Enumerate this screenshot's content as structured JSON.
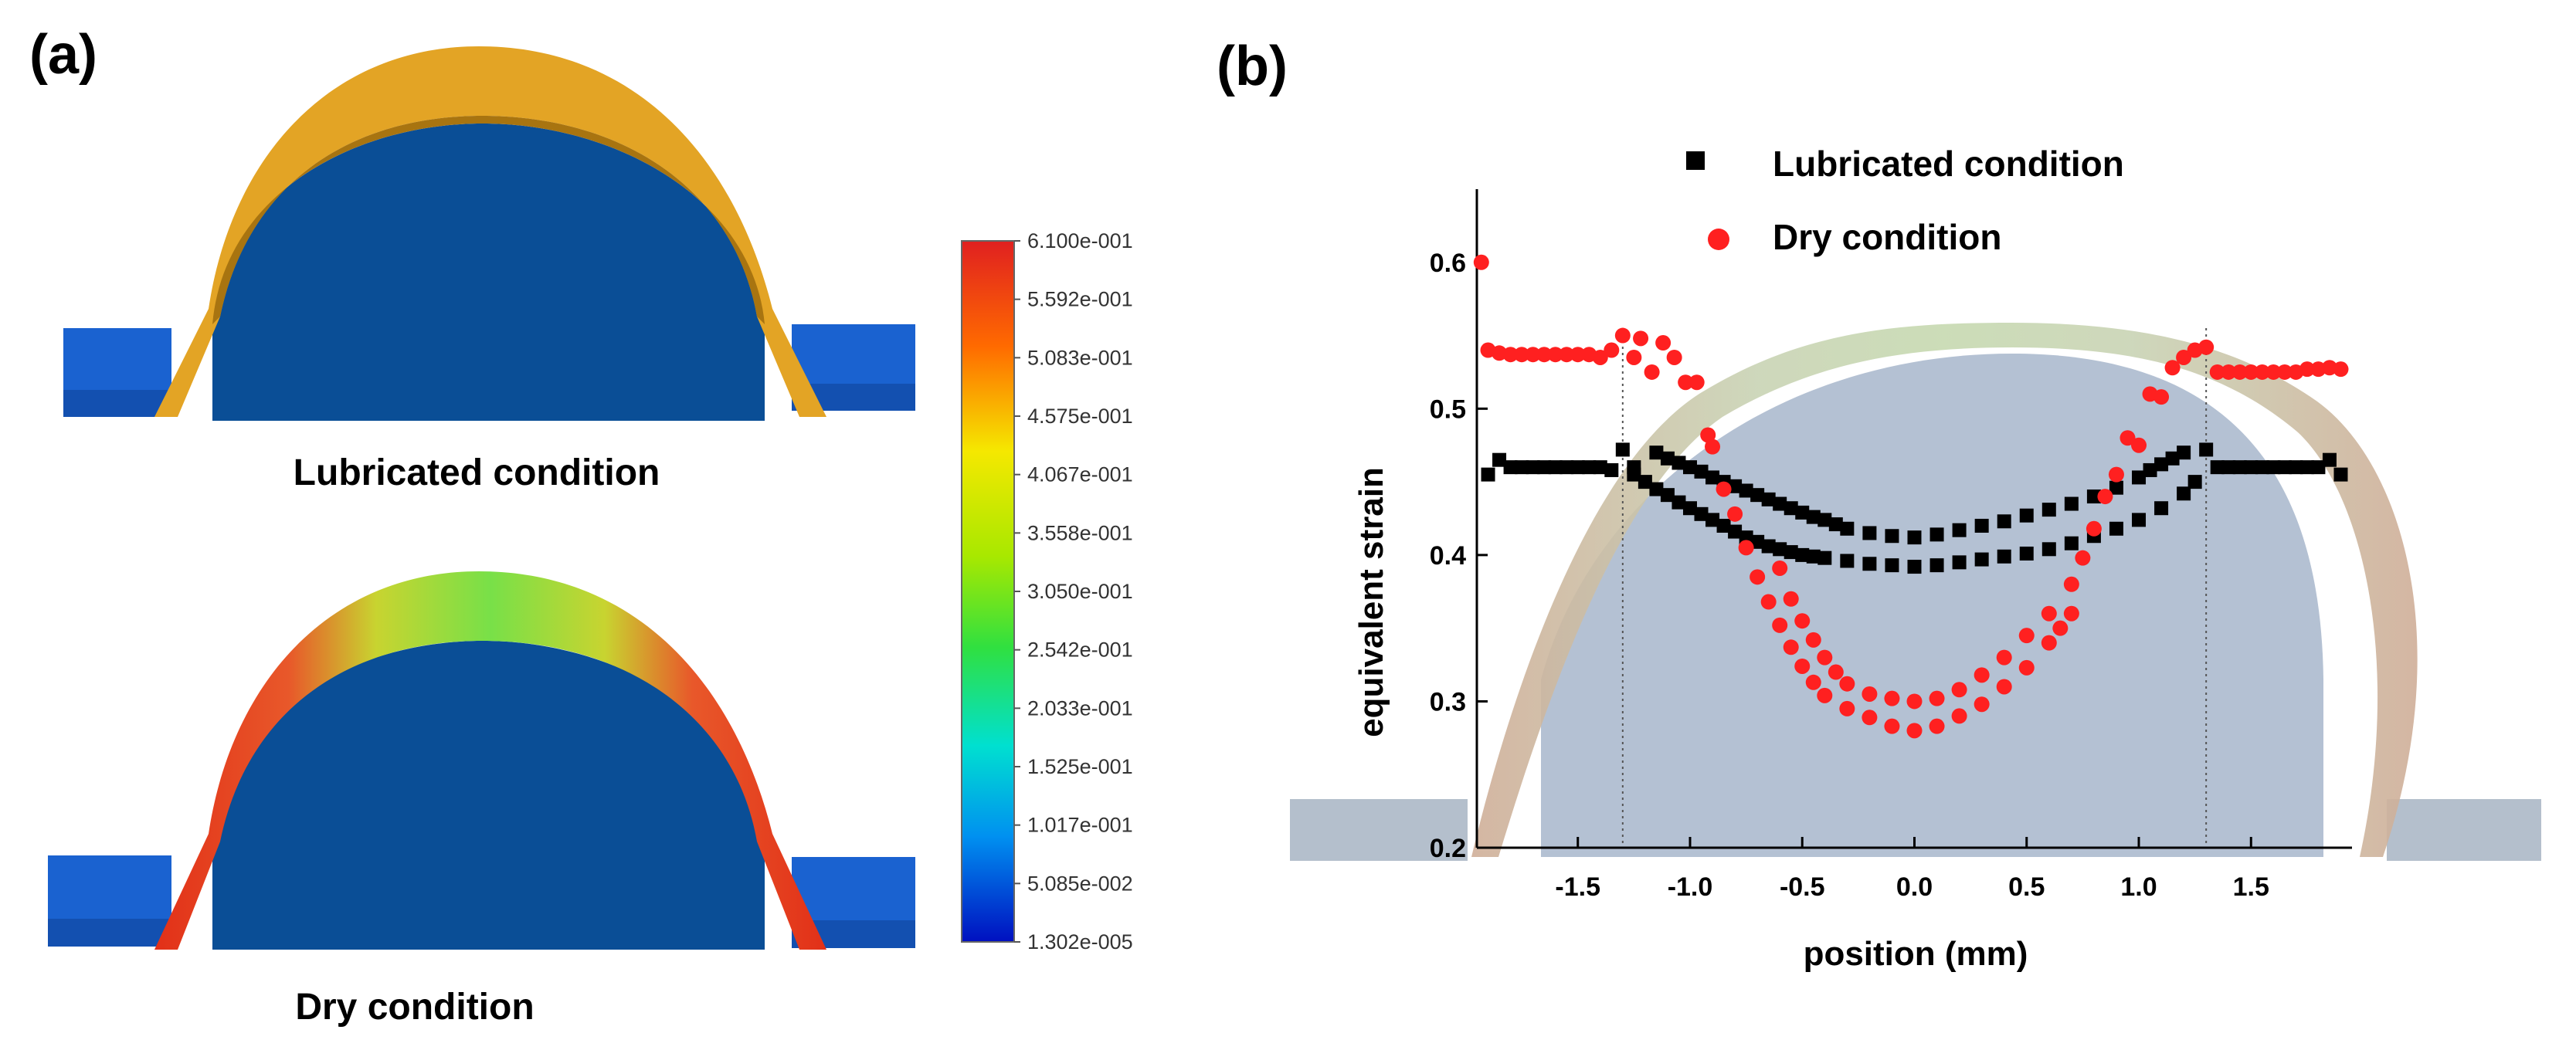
{
  "panels": {
    "a_label": "(a)",
    "b_label": "(b)"
  },
  "sim": {
    "lubricated_caption": "Lubricated condition",
    "dry_caption": "Dry condition",
    "colors": {
      "substrate": "#0a4e96",
      "lubricated_strip": "#e3a425",
      "block": "#1a62d0"
    },
    "colorbar_labels": [
      "6.100e-001",
      "5.592e-001",
      "5.083e-001",
      "4.575e-001",
      "4.067e-001",
      "3.558e-001",
      "3.050e-001",
      "2.542e-001",
      "2.033e-001",
      "1.525e-001",
      "1.017e-001",
      "5.085e-002",
      "1.302e-005"
    ]
  },
  "chart_data": {
    "type": "scatter",
    "xlabel": "position (mm)",
    "ylabel": "equivalent strain",
    "xlim": [
      -1.95,
      1.95
    ],
    "ylim": [
      0.2,
      0.65
    ],
    "xticks": [
      -1.5,
      -1.0,
      -0.5,
      0.0,
      0.5,
      1.0,
      1.5
    ],
    "xtick_labels": [
      "-1.5",
      "-1.0",
      "-0.5",
      "0.0",
      "0.5",
      "1.0",
      "1.5"
    ],
    "yticks": [
      0.2,
      0.3,
      0.4,
      0.5,
      0.6
    ],
    "ytick_labels": [
      "0.2",
      "0.3",
      "0.4",
      "0.5",
      "0.6"
    ],
    "reference_lines_x": [
      -1.3,
      1.3
    ],
    "legend_position": "top",
    "series": [
      {
        "name": "Lubricated condition",
        "marker": "square",
        "color": "#000000",
        "points": [
          [
            -1.9,
            0.455
          ],
          [
            -1.85,
            0.465
          ],
          [
            -1.8,
            0.46
          ],
          [
            -1.75,
            0.46
          ],
          [
            -1.7,
            0.46
          ],
          [
            -1.65,
            0.46
          ],
          [
            -1.6,
            0.46
          ],
          [
            -1.55,
            0.46
          ],
          [
            -1.5,
            0.46
          ],
          [
            -1.45,
            0.46
          ],
          [
            -1.4,
            0.46
          ],
          [
            -1.35,
            0.458
          ],
          [
            -1.3,
            0.472
          ],
          [
            -1.25,
            0.46
          ],
          [
            -1.25,
            0.455
          ],
          [
            -1.2,
            0.45
          ],
          [
            -1.15,
            0.445
          ],
          [
            -1.1,
            0.441
          ],
          [
            -1.05,
            0.436
          ],
          [
            -1.0,
            0.432
          ],
          [
            -0.95,
            0.428
          ],
          [
            -0.9,
            0.424
          ],
          [
            -0.85,
            0.42
          ],
          [
            -0.8,
            0.416
          ],
          [
            -0.75,
            0.412
          ],
          [
            -0.7,
            0.409
          ],
          [
            -0.65,
            0.406
          ],
          [
            -0.6,
            0.404
          ],
          [
            -0.55,
            0.402
          ],
          [
            -0.5,
            0.4
          ],
          [
            -0.45,
            0.399
          ],
          [
            -0.4,
            0.398
          ],
          [
            -0.3,
            0.396
          ],
          [
            -0.2,
            0.394
          ],
          [
            -0.1,
            0.393
          ],
          [
            0.0,
            0.392
          ],
          [
            0.1,
            0.393
          ],
          [
            0.2,
            0.395
          ],
          [
            0.3,
            0.397
          ],
          [
            0.4,
            0.399
          ],
          [
            0.5,
            0.401
          ],
          [
            0.6,
            0.404
          ],
          [
            0.7,
            0.408
          ],
          [
            0.8,
            0.413
          ],
          [
            0.9,
            0.418
          ],
          [
            1.0,
            0.424
          ],
          [
            1.1,
            0.432
          ],
          [
            1.2,
            0.442
          ],
          [
            1.25,
            0.45
          ],
          [
            -1.15,
            0.47
          ],
          [
            -1.1,
            0.466
          ],
          [
            -1.05,
            0.463
          ],
          [
            -1.0,
            0.46
          ],
          [
            -0.95,
            0.457
          ],
          [
            -0.9,
            0.453
          ],
          [
            -0.85,
            0.45
          ],
          [
            -0.8,
            0.447
          ],
          [
            -0.75,
            0.444
          ],
          [
            -0.7,
            0.441
          ],
          [
            -0.65,
            0.438
          ],
          [
            -0.6,
            0.435
          ],
          [
            -0.55,
            0.432
          ],
          [
            -0.5,
            0.429
          ],
          [
            -0.45,
            0.426
          ],
          [
            -0.4,
            0.424
          ],
          [
            -0.35,
            0.421
          ],
          [
            -0.3,
            0.418
          ],
          [
            -0.2,
            0.415
          ],
          [
            -0.1,
            0.413
          ],
          [
            0.0,
            0.412
          ],
          [
            0.1,
            0.414
          ],
          [
            0.2,
            0.417
          ],
          [
            0.3,
            0.42
          ],
          [
            0.4,
            0.423
          ],
          [
            0.5,
            0.427
          ],
          [
            0.6,
            0.431
          ],
          [
            0.7,
            0.435
          ],
          [
            0.8,
            0.44
          ],
          [
            0.9,
            0.446
          ],
          [
            1.0,
            0.453
          ],
          [
            1.05,
            0.458
          ],
          [
            1.1,
            0.462
          ],
          [
            1.15,
            0.466
          ],
          [
            1.2,
            0.47
          ],
          [
            1.3,
            0.472
          ],
          [
            1.35,
            0.46
          ],
          [
            1.4,
            0.46
          ],
          [
            1.45,
            0.46
          ],
          [
            1.5,
            0.46
          ],
          [
            1.55,
            0.46
          ],
          [
            1.6,
            0.46
          ],
          [
            1.65,
            0.46
          ],
          [
            1.7,
            0.46
          ],
          [
            1.75,
            0.46
          ],
          [
            1.8,
            0.46
          ],
          [
            1.85,
            0.465
          ],
          [
            1.9,
            0.455
          ]
        ]
      },
      {
        "name": "Dry condition",
        "marker": "circle",
        "color": "#ff2020",
        "points": [
          [
            -1.93,
            0.6
          ],
          [
            -1.9,
            0.54
          ],
          [
            -1.85,
            0.538
          ],
          [
            -1.8,
            0.537
          ],
          [
            -1.75,
            0.537
          ],
          [
            -1.7,
            0.537
          ],
          [
            -1.65,
            0.537
          ],
          [
            -1.6,
            0.537
          ],
          [
            -1.55,
            0.537
          ],
          [
            -1.5,
            0.537
          ],
          [
            -1.45,
            0.537
          ],
          [
            -1.4,
            0.535
          ],
          [
            -1.35,
            0.54
          ],
          [
            -1.3,
            0.55
          ],
          [
            -1.25,
            0.535
          ],
          [
            -1.22,
            0.548
          ],
          [
            -1.17,
            0.525
          ],
          [
            -1.12,
            0.545
          ],
          [
            -1.07,
            0.535
          ],
          [
            -1.02,
            0.518
          ],
          [
            -0.97,
            0.518
          ],
          [
            -0.92,
            0.482
          ],
          [
            -0.9,
            0.474
          ],
          [
            -0.85,
            0.445
          ],
          [
            -0.8,
            0.428
          ],
          [
            -0.75,
            0.405
          ],
          [
            -0.7,
            0.385
          ],
          [
            -0.65,
            0.368
          ],
          [
            -0.6,
            0.352
          ],
          [
            -0.55,
            0.337
          ],
          [
            -0.5,
            0.324
          ],
          [
            -0.45,
            0.313
          ],
          [
            -0.4,
            0.304
          ],
          [
            -0.3,
            0.295
          ],
          [
            -0.2,
            0.289
          ],
          [
            -0.1,
            0.283
          ],
          [
            0.0,
            0.28
          ],
          [
            0.1,
            0.283
          ],
          [
            0.2,
            0.29
          ],
          [
            0.3,
            0.298
          ],
          [
            0.4,
            0.31
          ],
          [
            0.5,
            0.323
          ],
          [
            0.6,
            0.34
          ],
          [
            0.65,
            0.35
          ],
          [
            0.7,
            0.36
          ],
          [
            -0.6,
            0.391
          ],
          [
            -0.55,
            0.37
          ],
          [
            -0.5,
            0.355
          ],
          [
            -0.45,
            0.342
          ],
          [
            -0.4,
            0.33
          ],
          [
            -0.35,
            0.32
          ],
          [
            -0.3,
            0.312
          ],
          [
            -0.2,
            0.305
          ],
          [
            -0.1,
            0.302
          ],
          [
            0.0,
            0.3
          ],
          [
            0.1,
            0.302
          ],
          [
            0.2,
            0.308
          ],
          [
            0.3,
            0.318
          ],
          [
            0.4,
            0.33
          ],
          [
            0.5,
            0.345
          ],
          [
            0.6,
            0.36
          ],
          [
            0.7,
            0.38
          ],
          [
            0.75,
            0.398
          ],
          [
            0.8,
            0.418
          ],
          [
            0.85,
            0.44
          ],
          [
            0.9,
            0.455
          ],
          [
            0.95,
            0.48
          ],
          [
            1.0,
            0.475
          ],
          [
            1.05,
            0.51
          ],
          [
            1.1,
            0.508
          ],
          [
            1.15,
            0.528
          ],
          [
            1.2,
            0.535
          ],
          [
            1.25,
            0.54
          ],
          [
            1.3,
            0.542
          ],
          [
            1.35,
            0.525
          ],
          [
            1.4,
            0.525
          ],
          [
            1.45,
            0.525
          ],
          [
            1.5,
            0.525
          ],
          [
            1.55,
            0.525
          ],
          [
            1.6,
            0.525
          ],
          [
            1.65,
            0.525
          ],
          [
            1.7,
            0.525
          ],
          [
            1.75,
            0.527
          ],
          [
            1.8,
            0.527
          ],
          [
            1.85,
            0.528
          ],
          [
            1.9,
            0.527
          ]
        ]
      }
    ]
  }
}
